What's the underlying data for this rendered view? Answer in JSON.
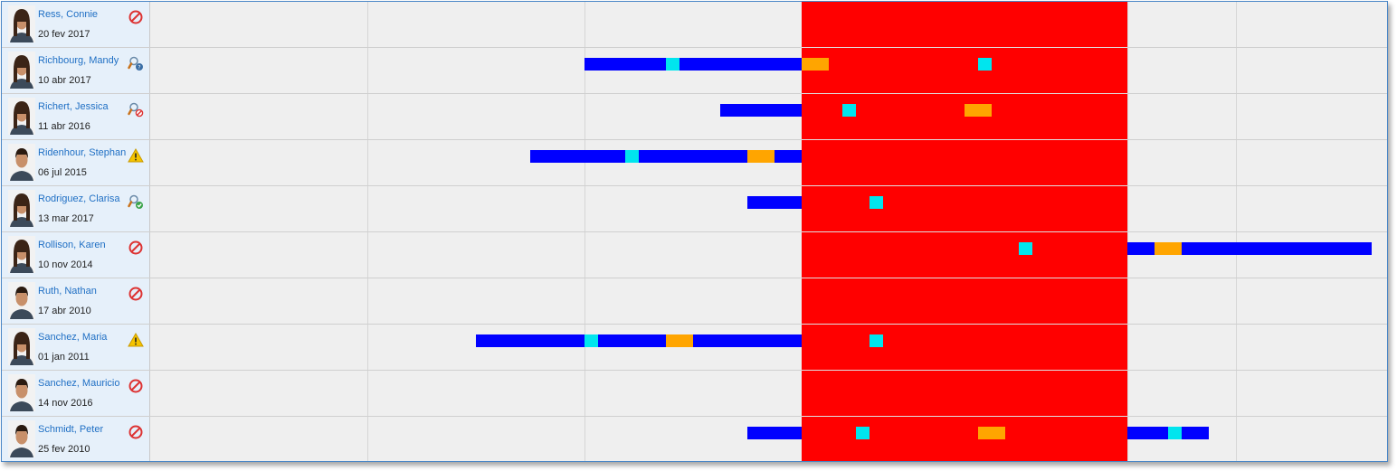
{
  "colors": {
    "timeline_bar": "#0000ff",
    "marker_cyan": "#00e5ee",
    "marker_orange": "#ffa500",
    "blocked_period": "#ff0000",
    "name_link": "#1f6fc4"
  },
  "people": [
    {
      "name": "Ress, Connie",
      "date": "20 fev 2017",
      "status_icon": "no-entry-icon",
      "gender": "f"
    },
    {
      "name": "Richbourg, Mandy",
      "date": "10 abr 2017",
      "status_icon": "search-question-icon",
      "gender": "f"
    },
    {
      "name": "Richert, Jessica",
      "date": "11 abr 2016",
      "status_icon": "search-blocked-icon",
      "gender": "f"
    },
    {
      "name": "Ridenhour, Stephan",
      "date": "06 jul 2015",
      "status_icon": "warning-icon",
      "gender": "m"
    },
    {
      "name": "Rodriguez, Clarisa",
      "date": "13 mar 2017",
      "status_icon": "search-check-icon",
      "gender": "f"
    },
    {
      "name": "Rollison, Karen",
      "date": "10 nov 2014",
      "status_icon": "no-entry-icon",
      "gender": "f"
    },
    {
      "name": "Ruth, Nathan",
      "date": "17 abr 2010",
      "status_icon": "no-entry-icon",
      "gender": "m"
    },
    {
      "name": "Sanchez, Maria",
      "date": "01 jan 2011",
      "status_icon": "warning-icon",
      "gender": "f"
    },
    {
      "name": "Sanchez, Mauricio",
      "date": "14 nov 2016",
      "status_icon": "no-entry-icon",
      "gender": "m"
    },
    {
      "name": "Schmidt, Peter",
      "date": "25 fev 2010",
      "status_icon": "no-entry-icon",
      "gender": "m"
    }
  ]
}
